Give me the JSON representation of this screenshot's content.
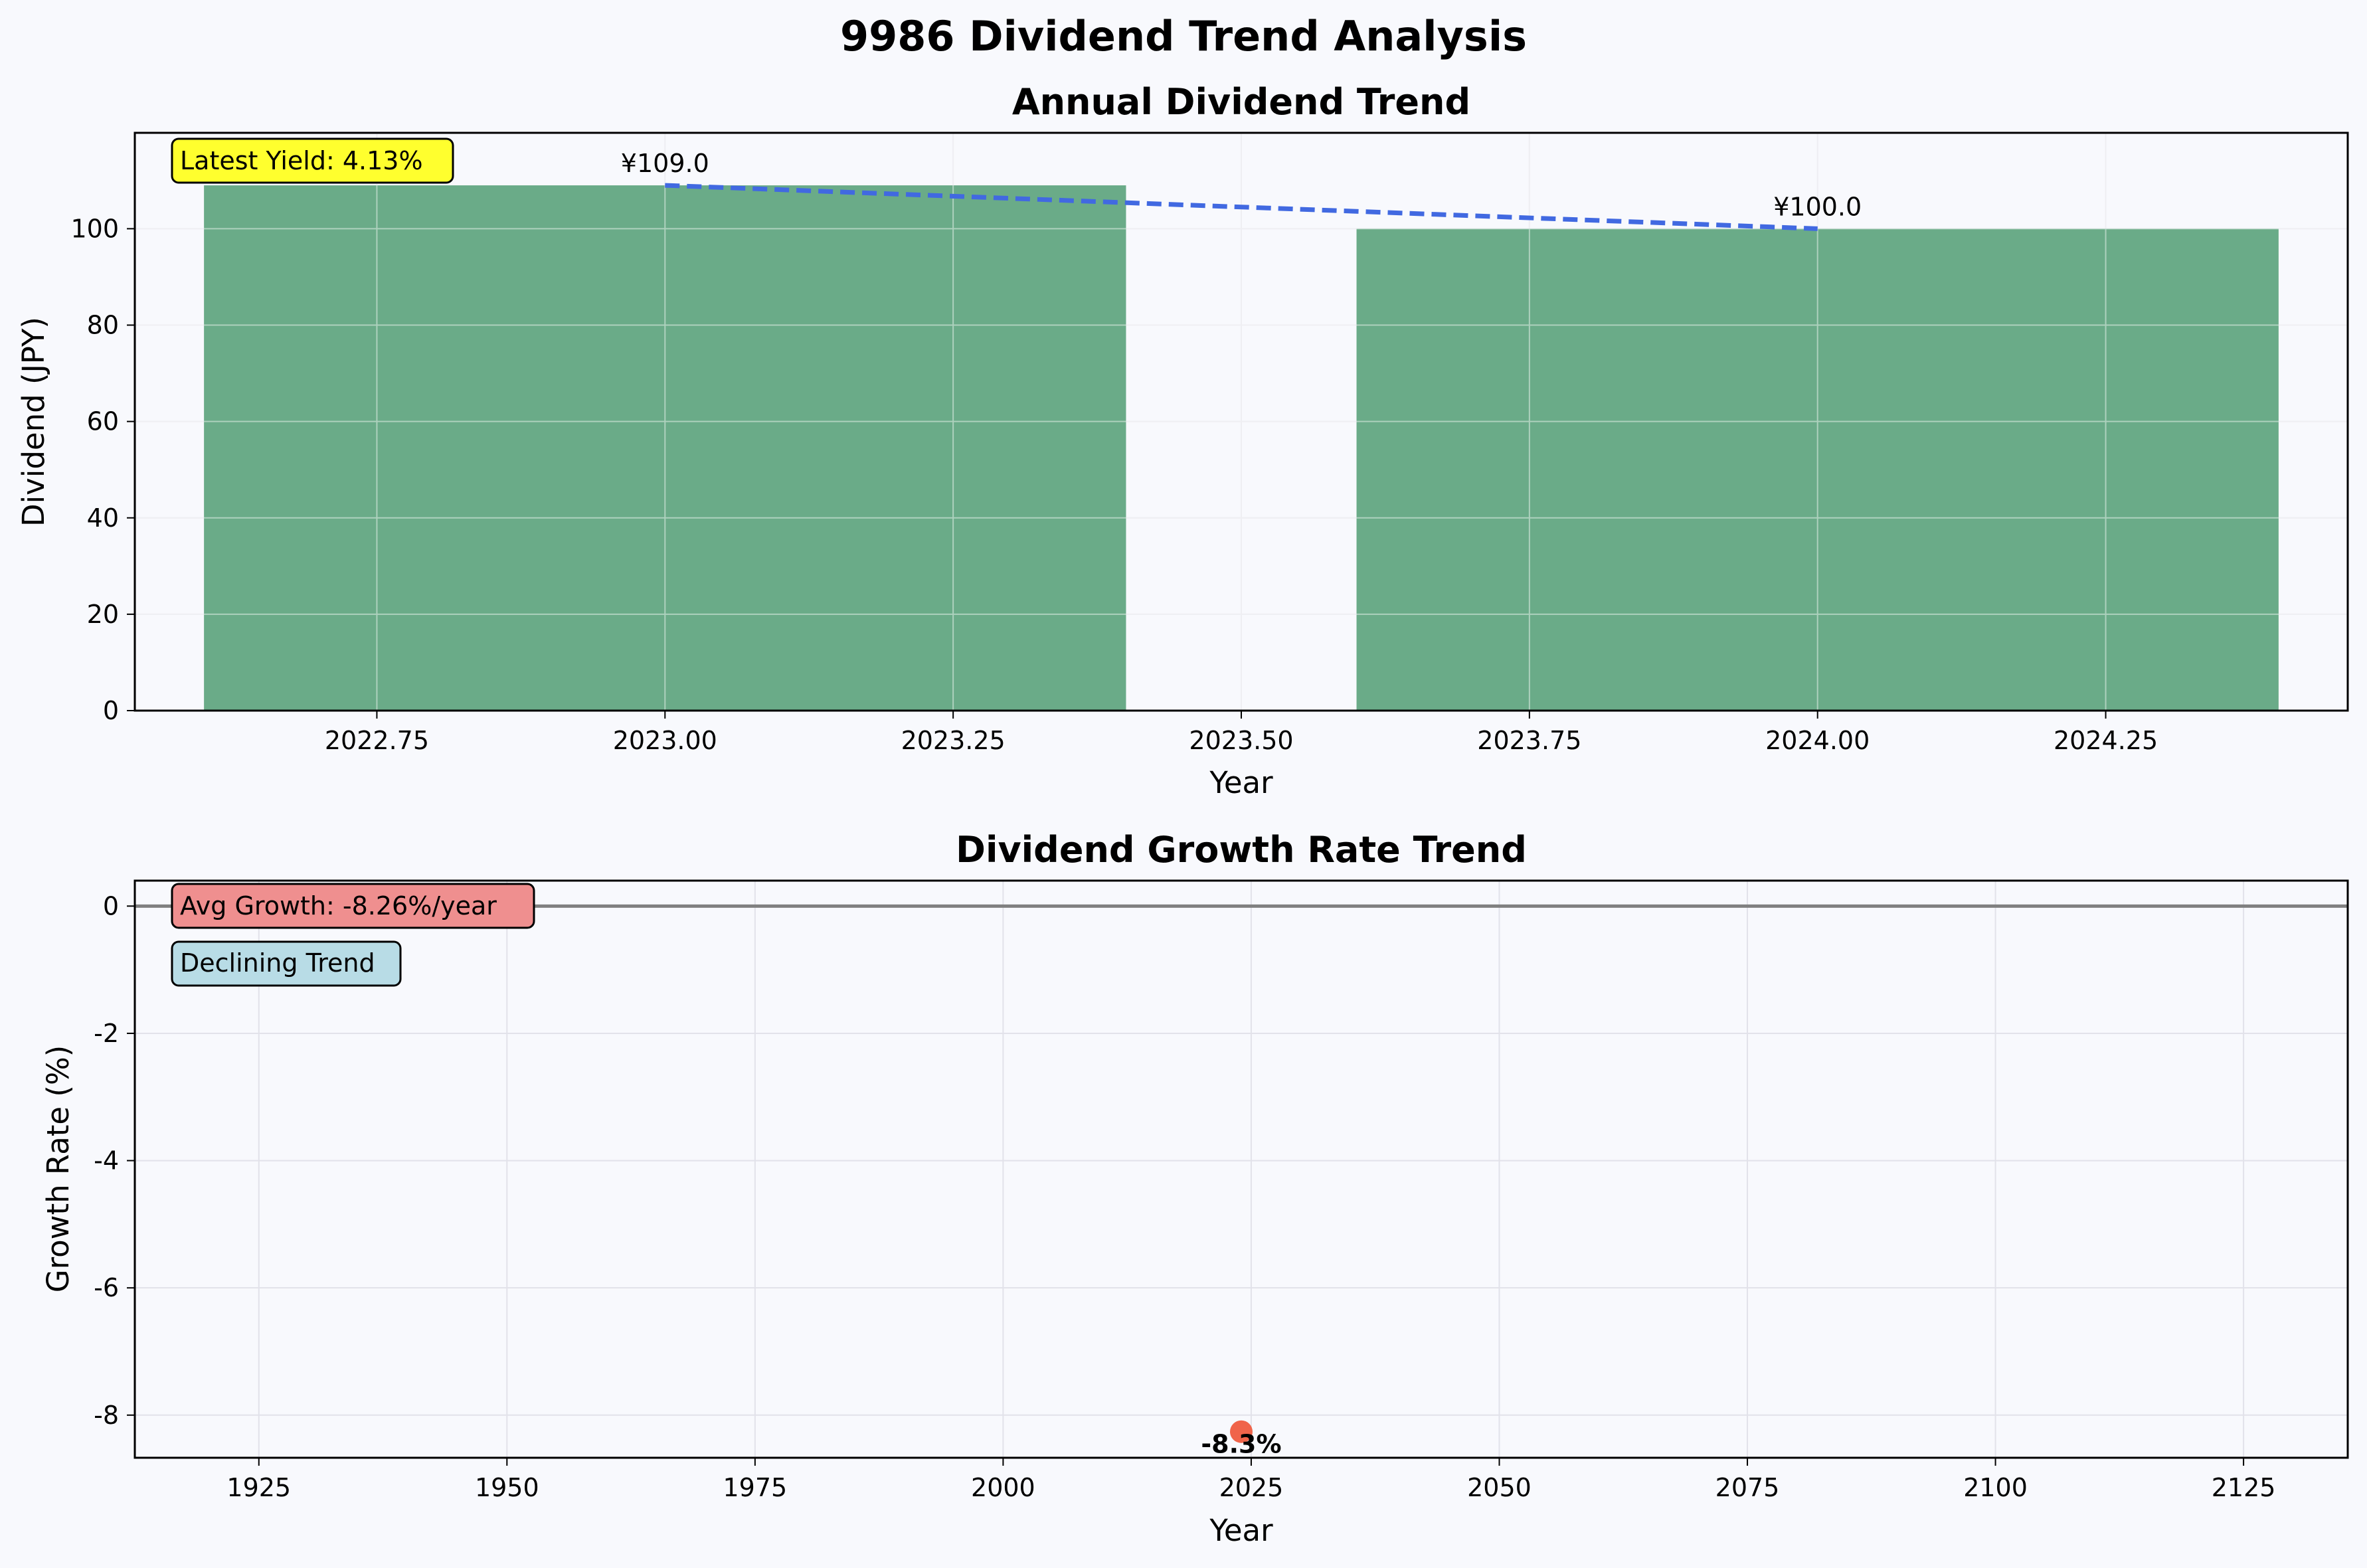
{
  "figure": {
    "title": "9986 Dividend Trend Analysis"
  },
  "colors": {
    "background": "#f8f9fd",
    "bar": "#6aab88",
    "trend_line": "#4169e1",
    "growth_point": "#f0644a",
    "zero_line": "#808080",
    "yield_box": "#ffff2e",
    "avg_growth_box": "#ef8f8f",
    "trend_box": "#b8dce6",
    "grid": "#e2e2ea"
  },
  "chart_data": [
    {
      "type": "bar",
      "title": "Annual Dividend Trend",
      "xlabel": "Year",
      "ylabel": "Dividend (JPY)",
      "x": [
        2023,
        2024
      ],
      "values": [
        109.0,
        100.0
      ],
      "bar_width": 0.8,
      "data_labels": [
        "¥109.0",
        "¥100.0"
      ],
      "trend_line": {
        "style": "dashed",
        "x": [
          2023,
          2024
        ],
        "y": [
          109.0,
          100.0
        ]
      },
      "xlim": [
        2022.54,
        2024.46
      ],
      "ylim": [
        0,
        119.9
      ],
      "xticks": [
        2022.75,
        2023.0,
        2023.25,
        2023.5,
        2023.75,
        2024.0,
        2024.25
      ],
      "xtick_labels": [
        "2022.75",
        "2023.00",
        "2023.25",
        "2023.50",
        "2023.75",
        "2024.00",
        "2024.25"
      ],
      "yticks": [
        0,
        20,
        40,
        60,
        80,
        100
      ],
      "ytick_labels": [
        "0",
        "20",
        "40",
        "60",
        "80",
        "100"
      ],
      "grid": true,
      "annotation": "Latest Yield: 4.13%"
    },
    {
      "type": "scatter",
      "title": "Dividend Growth Rate Trend",
      "xlabel": "Year",
      "ylabel": "Growth Rate (%)",
      "x": [
        2024
      ],
      "y": [
        -8.26
      ],
      "data_labels": [
        "-8.3%"
      ],
      "reference_line": 0,
      "xlim": [
        1912.5,
        2135.5
      ],
      "ylim": [
        -8.67,
        0.4
      ],
      "xticks": [
        1925,
        1950,
        1975,
        2000,
        2025,
        2050,
        2075,
        2100,
        2125
      ],
      "xtick_labels": [
        "1925",
        "1950",
        "1975",
        "2000",
        "2025",
        "2050",
        "2075",
        "2100",
        "2125"
      ],
      "yticks": [
        0,
        -2,
        -4,
        -6,
        -8
      ],
      "ytick_labels": [
        "0",
        "-2",
        "-4",
        "-6",
        "-8"
      ],
      "grid": true,
      "annotations": [
        "Avg Growth: -8.26%/year",
        "Declining Trend"
      ]
    }
  ]
}
